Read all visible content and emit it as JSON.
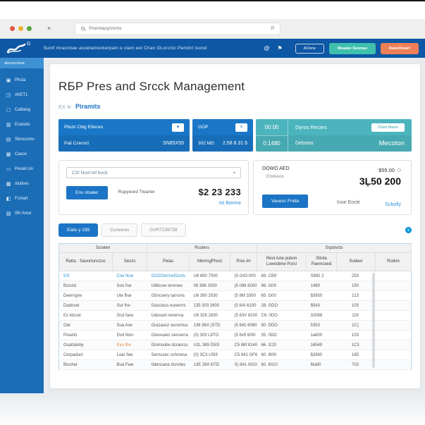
{
  "colors": {
    "header_blue": "#0d57a5",
    "sidebar_blue": "#1b6db6",
    "card_blue": "#1a77c7",
    "card_teal": "#4cb4bd",
    "teal_button": "#3fc0ad",
    "orange_button": "#ef7f56",
    "accent_blue": "#1b74c5",
    "link_blue": "#2a8fd4"
  },
  "browser": {
    "tab_close_glyph": "×",
    "url": "Prsnmacy/zxrns",
    "url_action_glyph": "R"
  },
  "header": {
    "logo_sup": "G",
    "tagline": "Suntf mracintae asoetalnockerpaln e clam eet Chan OLxrcnic Pemilct tsond",
    "icon1": "@",
    "icon2": "⚑",
    "btn_outline": "AOone",
    "btn_teal": "Meaake Seemas",
    "btn_orange": "RaneOraert"
  },
  "sidebar": {
    "active_label": "abcourrisna",
    "items": [
      {
        "icon": "▣",
        "label": "Phcta"
      },
      {
        "icon": "◳",
        "label": "AhET1"
      },
      {
        "icon": "▢",
        "label": "Calitang"
      },
      {
        "icon": "▥",
        "label": "Ecanots"
      },
      {
        "icon": "▤",
        "label": "Sbnscsms"
      },
      {
        "icon": "▦",
        "label": "Casos"
      },
      {
        "icon": "▭",
        "label": "Peoeil cin"
      },
      {
        "icon": "▩",
        "label": "oludres"
      },
      {
        "icon": "◧",
        "label": "Fcmart"
      },
      {
        "icon": "▨",
        "label": "I5h Ance"
      }
    ]
  },
  "page": {
    "title": "RБP Pres and Srcck Management",
    "breadcrumb_prefix": "EX le",
    "breadcrumb_current": "Piramits"
  },
  "cards": {
    "card1": {
      "title": "Pbutz Cbig Etteces",
      "chevron": "▾",
      "sub_left": "Pali Czeroct",
      "sub_right": "SN85X55"
    },
    "card2": {
      "title": "GOP",
      "close_glyph": "×",
      "sub_left": "302 MD",
      "sub_right": "2.58 8.31 6"
    },
    "card3": {
      "time_top": "00:00",
      "time_bottom": "0:1480",
      "title": "Dyros Recies",
      "button": "Charn Baxon",
      "sub_left": "Debstos",
      "sub_right": "Mecoton"
    }
  },
  "panels": {
    "left": {
      "select_value": "CS! Noxt tof buck",
      "caret": "▾",
      "button": "Ens otsaler",
      "note": "Rupyeord Tteaner",
      "amount": "$2 23 233",
      "link": "Ist Bonine"
    },
    "right": {
      "title": "DOWO AED",
      "subtitle": "Etstkeos",
      "amount_small": "$55.00",
      "amount_big": "3Ļ50 200",
      "button": "Vauecc Fnida",
      "note": "Inoe Eocle",
      "link": "Scbolly"
    }
  },
  "toolbar": {
    "tabs": [
      {
        "label": "Eiats y 195",
        "active": true
      },
      {
        "label": "Cuneews",
        "active": false
      },
      {
        "label": "GVR7236728",
        "active": false
      }
    ],
    "info_glyph": "i"
  },
  "table": {
    "groups": [
      {
        "label": "Scralen",
        "span": 2
      },
      {
        "label": "Rcoters",
        "span": 3
      },
      {
        "label": "Srputvcts",
        "span": 4
      }
    ],
    "columns": [
      "Ratta · Saunrtunczos",
      "Seozs",
      "Petas",
      "MemsgPhsot",
      "Pres im",
      "Revt AAe pubon Lowodene Porsl",
      "Sttota Paemceed",
      "Sudeer",
      "Rodon"
    ],
    "rows": [
      {
        "cells": [
          "5/3",
          "Coe Nue",
          "GO2Oorcrw52orls",
          "U6 690 7000",
          "(5 G43-000",
          "68. CB9",
          "S882 2",
          "253",
          ""
        ],
        "marks": {
          "0": "blue",
          "1": "blue",
          "2": "link"
        }
      },
      {
        "cells": [
          "Bzxctd",
          "Soo frar",
          "U66cow orrenws",
          "06 396 2000",
          "(5 096 6000",
          "96. G09",
          "1499",
          "150",
          ""
        ]
      },
      {
        "cells": [
          "Deerngne",
          "Ute fhar",
          "G5ncoery tarrorra",
          "U6 390 2030",
          "(5 8M 3300",
          "65. G00",
          "$3950",
          "213",
          ""
        ]
      },
      {
        "cells": [
          "Dadovet",
          "Sur fne",
          "Gascious eureorrs",
          "135 303 2600",
          "(5 6AI 6100",
          "28. GDO",
          "$543",
          "103",
          ""
        ]
      },
      {
        "cells": [
          "Ex tdzsot",
          "Gcd fase",
          "Udoxaxt nerenna",
          "U8 328 2830",
          "(5 63V 8100",
          "C6. 0DO",
          "32068",
          "119",
          ""
        ]
      },
      {
        "cells": [
          "Oat",
          "Sua Axe",
          "Grazausz ounsmva",
          "136 36X (STD",
          "(5 641 6060",
          "60. DDO",
          "5353",
          "1C)",
          ""
        ]
      },
      {
        "cells": [
          "Preahti",
          "Dvd fiom",
          "Gdexuakz oenverra",
          "(0) 303 L8TO",
          "(5 6x5 6/00",
          "35. 0DO",
          "1a600",
          "103",
          ""
        ]
      },
      {
        "cells": [
          "Osattaloby",
          "Exo lfre",
          "Glomsube dcraorss",
          "U2L 389 D5I3",
          "C5 86f 8140",
          "66. I220",
          "16549",
          "1C3",
          ""
        ],
        "marks": {
          "1": "orange"
        }
      },
      {
        "cells": [
          "Cerpaduct",
          "Loar fwe",
          "Sernusec ochnwsa",
          "(0) 3C3 U5I9",
          "C5 641 GF69",
          "60. I800",
          "$2860",
          "165",
          ""
        ]
      },
      {
        "cells": [
          "Bicsher",
          "Bua Fwe",
          "0dencane dcnvtes",
          "13E 269 I07D",
          "S) 841 0IG0",
          "60. 6010",
          "Ma90",
          "703",
          ""
        ]
      }
    ]
  }
}
